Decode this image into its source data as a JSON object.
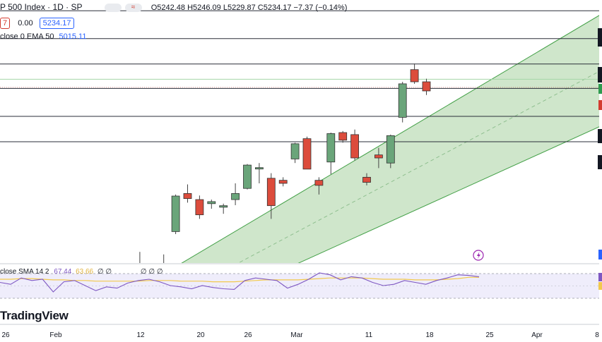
{
  "header": {
    "symbol_title": "P 500 Index · 1D · SP",
    "ohlc": "O5242.48 H5246.09 L5229.87 C5234.17 −7.37 (−0.14%)",
    "row2_left": "7",
    "row2_mid": "0.00",
    "row2_price": "5234.17",
    "ema_label": "close 0 EMA 50",
    "ema_value": "5015.11",
    "rsi_label": "close SMA 14 2",
    "rsi_v1": "67.44",
    "rsi_v2": "63.66",
    "rsi_zeros_a": "∅ ∅",
    "rsi_zeros_b": "∅ ∅ ∅"
  },
  "logo": "TradingView",
  "colors": {
    "up": "#6aa57a",
    "down": "#dc4c3c",
    "channel_fill": "#c7e2c2",
    "channel_line": "#43a047",
    "rsi_bg": "#efedfb",
    "rsi_line": "#7e57c2",
    "sma_line": "#f2c94c"
  },
  "chart_data": {
    "type": "candlestick",
    "x_ticks": [
      "26",
      "Feb",
      "12",
      "20",
      "26",
      "Mar",
      "11",
      "18",
      "25",
      "Apr",
      "8"
    ],
    "candles": [
      {
        "o": 4908,
        "h": 4935,
        "l": 4885,
        "c": 4932
      },
      {
        "o": 4935,
        "h": 4965,
        "l": 4922,
        "c": 4930
      },
      {
        "o": 4890,
        "h": 4942,
        "l": 4860,
        "c": 4938
      },
      {
        "o": 4940,
        "h": 4960,
        "l": 4880,
        "c": 4895
      },
      {
        "o": 5005,
        "h": 5078,
        "l": 5000,
        "c": 5075
      },
      {
        "o": 5080,
        "h": 5098,
        "l": 5062,
        "c": 5070
      },
      {
        "o": 5068,
        "h": 5076,
        "l": 5030,
        "c": 5038
      },
      {
        "o": 5060,
        "h": 5068,
        "l": 5050,
        "c": 5064
      },
      {
        "o": 5053,
        "h": 5060,
        "l": 5040,
        "c": 5056
      },
      {
        "o": 5068,
        "h": 5100,
        "l": 5057,
        "c": 5080
      },
      {
        "o": 5090,
        "h": 5138,
        "l": 5088,
        "c": 5136
      },
      {
        "o": 5130,
        "h": 5140,
        "l": 5100,
        "c": 5131
      },
      {
        "o": 5110,
        "h": 5120,
        "l": 5030,
        "c": 5056
      },
      {
        "o": 5106,
        "h": 5112,
        "l": 5094,
        "c": 5100
      },
      {
        "o": 5148,
        "h": 5180,
        "l": 5140,
        "c": 5178
      },
      {
        "o": 5188,
        "h": 5192,
        "l": 5130,
        "c": 5128
      },
      {
        "o": 5106,
        "h": 5112,
        "l": 5078,
        "c": 5096
      },
      {
        "o": 5142,
        "h": 5200,
        "l": 5118,
        "c": 5198
      },
      {
        "o": 5200,
        "h": 5203,
        "l": 5180,
        "c": 5185
      },
      {
        "o": 5196,
        "h": 5206,
        "l": 5145,
        "c": 5150
      },
      {
        "o": 5112,
        "h": 5120,
        "l": 5096,
        "c": 5102
      },
      {
        "o": 5156,
        "h": 5170,
        "l": 5130,
        "c": 5150
      },
      {
        "o": 5140,
        "h": 5196,
        "l": 5130,
        "c": 5194
      },
      {
        "o": 5230,
        "h": 5300,
        "l": 5220,
        "c": 5296
      },
      {
        "o": 5324,
        "h": 5336,
        "l": 5296,
        "c": 5300
      },
      {
        "o": 5300,
        "h": 5306,
        "l": 5274,
        "c": 5282
      }
    ],
    "horizontal_levels": [
      5440,
      5385,
      5335,
      5287,
      5232,
      5182
    ],
    "highlight_level": 5305,
    "channel": {
      "upper": [
        [
          0,
          4880
        ],
        [
          43.0,
          5480
        ]
      ],
      "lower": [
        [
          8.4,
          4880
        ],
        [
          43.0,
          5249
        ]
      ]
    },
    "rsi_values": [
      55,
      52,
      62,
      58,
      60,
      40,
      56,
      58,
      50,
      42,
      48,
      46,
      54,
      58,
      60,
      56,
      50,
      48,
      45,
      50,
      47,
      45,
      44,
      58,
      62,
      60,
      58,
      46,
      52,
      60,
      70,
      67,
      59,
      64,
      62,
      55,
      50,
      52,
      58,
      55,
      52,
      58,
      62,
      67,
      66,
      64
    ],
    "sma_values": [
      60,
      60,
      61,
      61,
      60,
      59,
      59,
      58,
      58,
      57,
      57,
      57,
      57,
      57,
      58,
      58,
      58,
      57,
      57,
      57,
      56,
      56,
      56,
      57,
      58,
      59,
      59,
      59,
      59,
      60,
      61,
      62,
      62,
      62,
      62,
      61,
      60,
      60,
      60,
      59,
      59,
      59,
      60,
      61,
      63,
      63
    ]
  }
}
